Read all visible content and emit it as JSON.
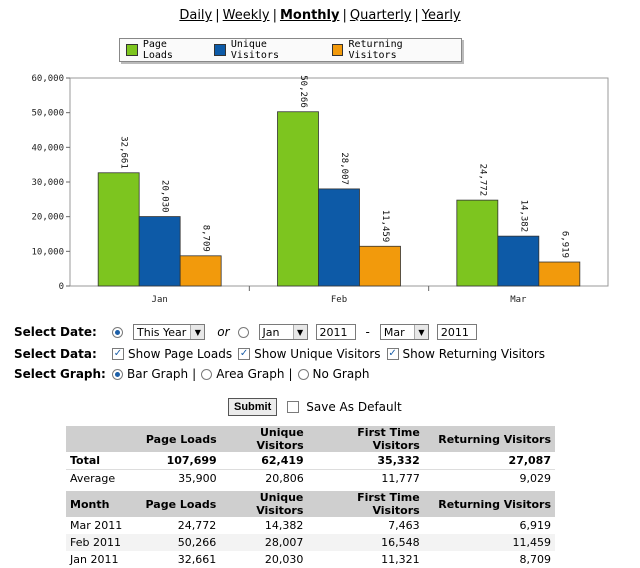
{
  "period_nav": {
    "items": [
      "Daily",
      "Weekly",
      "Monthly",
      "Quarterly",
      "Yearly"
    ],
    "separator": "|",
    "active": "Monthly"
  },
  "legend": [
    {
      "label": "Page Loads",
      "color": "#7dc51f"
    },
    {
      "label": "Unique Visitors",
      "color": "#0d5aa7"
    },
    {
      "label": "Returning Visitors",
      "color": "#f29a0c"
    }
  ],
  "chart_data": {
    "type": "bar",
    "categories": [
      "Jan",
      "Feb",
      "Mar"
    ],
    "series": [
      {
        "name": "Page Loads",
        "values": [
          32661,
          50266,
          24772
        ],
        "labels": [
          "32,661",
          "50,266",
          "24,772"
        ],
        "color": "#7dc51f"
      },
      {
        "name": "Unique Visitors",
        "values": [
          20030,
          28007,
          14382
        ],
        "labels": [
          "20,030",
          "28,007",
          "14,382"
        ],
        "color": "#0d5aa7"
      },
      {
        "name": "Returning Visitors",
        "values": [
          8709,
          11459,
          6919
        ],
        "labels": [
          "8,709",
          "11,459",
          "6,919"
        ],
        "color": "#f29a0c"
      }
    ],
    "ylim": [
      0,
      60000
    ],
    "yticks": [
      0,
      10000,
      20000,
      30000,
      40000,
      50000,
      60000
    ],
    "ytick_labels": [
      "0",
      "10,000",
      "20,000",
      "30,000",
      "40,000",
      "50,000",
      "60,000"
    ],
    "title": "",
    "xlabel": "",
    "ylabel": ""
  },
  "form": {
    "select_date_label": "Select Date:",
    "period_select": "This Year",
    "or_label": "or",
    "from_month": "Jan",
    "from_year": "2011",
    "range_dash": "-",
    "to_month": "Mar",
    "to_year": "2011",
    "select_data_label": "Select Data:",
    "show_page_loads": "Show Page Loads",
    "show_unique_visitors": "Show Unique Visitors",
    "show_returning_visitors": "Show Returning Visitors",
    "select_graph_label": "Select Graph:",
    "bar_graph": "Bar Graph",
    "area_graph": "Area Graph",
    "no_graph": "No Graph",
    "pipe": "|",
    "submit_label": "Submit",
    "save_default_label": "Save As Default"
  },
  "summary_table": {
    "headers": [
      "",
      "Page Loads",
      "Unique Visitors",
      "First Time Visitors",
      "Returning Visitors"
    ],
    "rows": [
      [
        "Total",
        "107,699",
        "62,419",
        "35,332",
        "27,087"
      ],
      [
        "Average",
        "35,900",
        "20,806",
        "11,777",
        "9,029"
      ]
    ]
  },
  "month_table": {
    "headers": [
      "Month",
      "Page Loads",
      "Unique Visitors",
      "First Time Visitors",
      "Returning Visitors"
    ],
    "rows": [
      [
        "Mar 2011",
        "24,772",
        "14,382",
        "7,463",
        "6,919"
      ],
      [
        "Feb 2011",
        "50,266",
        "28,007",
        "16,548",
        "11,459"
      ],
      [
        "Jan 2011",
        "32,661",
        "20,030",
        "11,321",
        "8,709"
      ]
    ]
  }
}
